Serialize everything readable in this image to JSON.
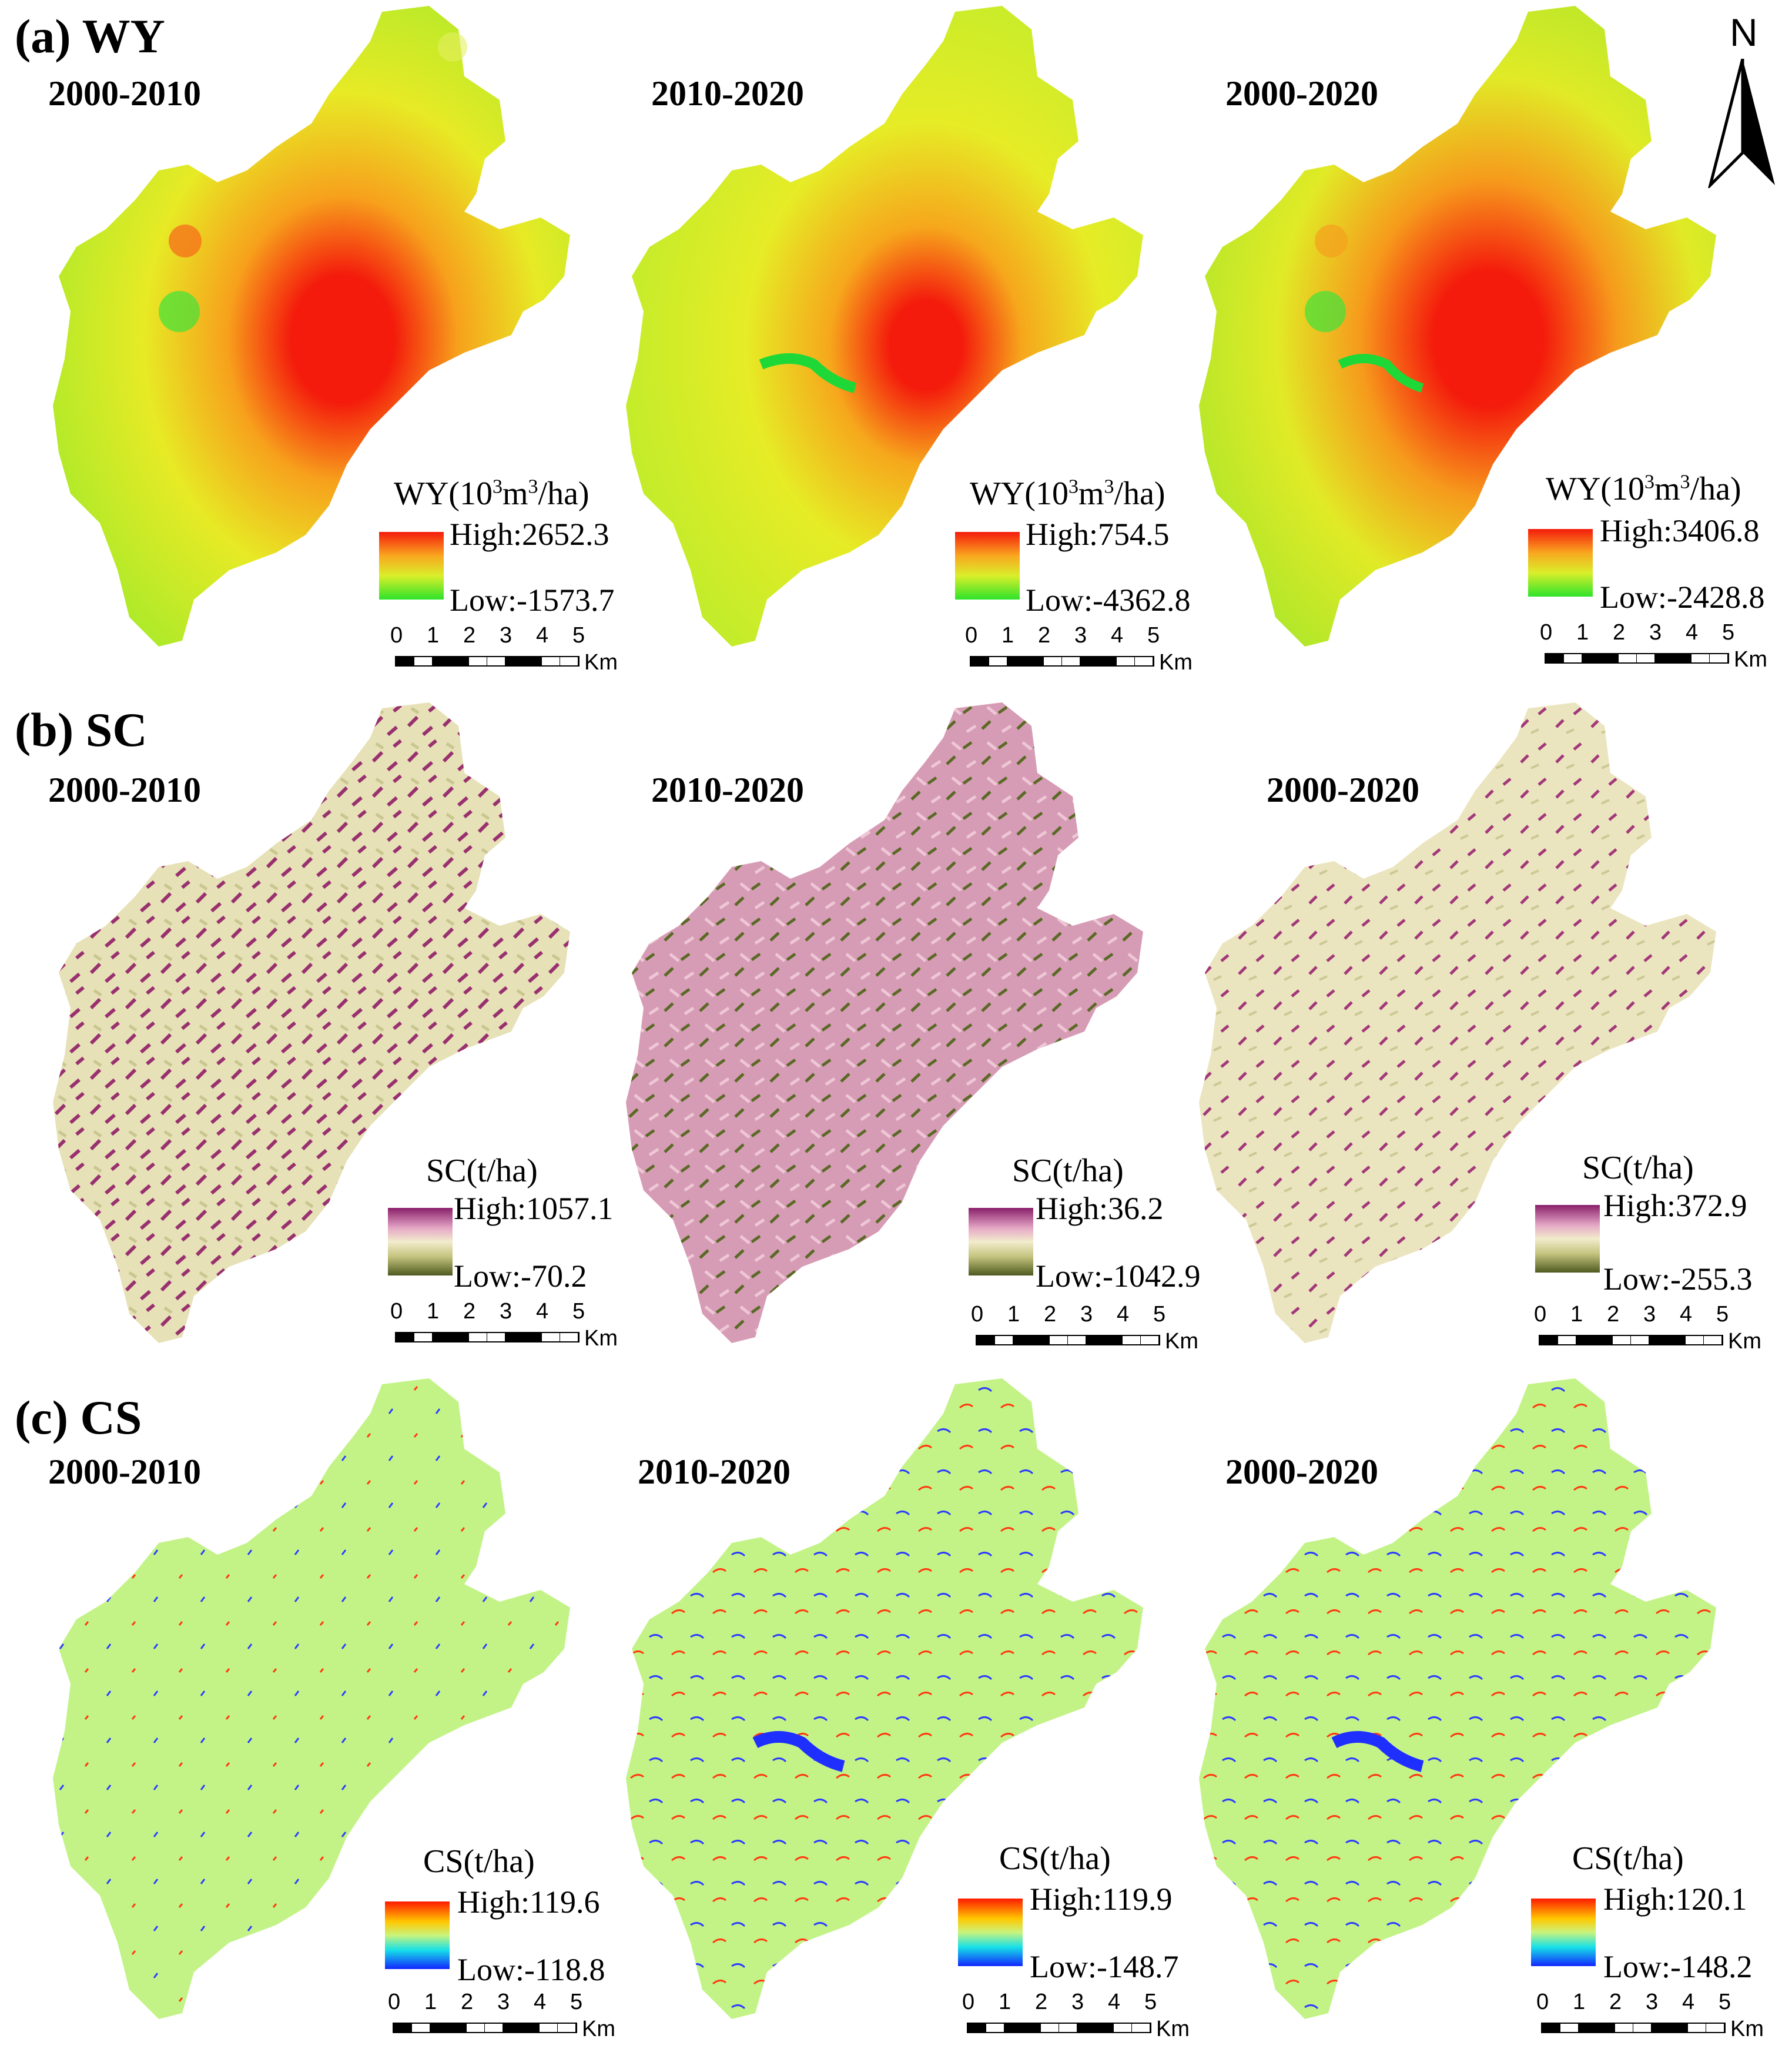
{
  "sections": [
    {
      "label": "(a) WY",
      "legend_title_prefix": "WY(10",
      "legend_sup1": "3",
      "legend_mid": "m",
      "legend_sup2": "3",
      "legend_suffix": "/ha)",
      "ramp": [
        "#f41b0c",
        "#f9c21f",
        "#d9ef2a",
        "#2ee32b"
      ],
      "maps": [
        {
          "period": "2000-2010",
          "high": "High:2652.3",
          "low": "Low:-1573.7"
        },
        {
          "period": "2010-2020",
          "high": "High:754.5",
          "low": "Low:-4362.8"
        },
        {
          "period": "2000-2020",
          "high": "High:3406.8",
          "low": "Low:-2428.8"
        }
      ]
    },
    {
      "label": "(b) SC",
      "legend_title": "SC(t/ha)",
      "ramp": [
        "#8a1f6b",
        "#e5a8c6",
        "#f2eccc",
        "#c5c47f",
        "#4e5a1e"
      ],
      "maps": [
        {
          "period": "2000-2010",
          "high": "High:1057.1",
          "low": "Low:-70.2"
        },
        {
          "period": "2010-2020",
          "high": "High:36.2",
          "low": "Low:-1042.9"
        },
        {
          "period": "2000-2020",
          "high": "High:372.9",
          "low": "Low:-255.3"
        }
      ]
    },
    {
      "label": "(c) CS",
      "legend_title": "CS(t/ha)",
      "ramp": [
        "#ff1a00",
        "#ffc800",
        "#c9f47c",
        "#16e0e8",
        "#1226ff"
      ],
      "maps": [
        {
          "period": "2000-2010",
          "high": "High:119.6",
          "low": "Low:-118.8"
        },
        {
          "period": "2010-2020",
          "high": "High:119.9",
          "low": "Low:-148.7"
        },
        {
          "period": "2000-2020",
          "high": "High:120.1",
          "low": "Low:-148.2"
        }
      ]
    }
  ],
  "scalebar": {
    "ticks": [
      "0",
      "1",
      "2",
      "3",
      "4",
      "5"
    ],
    "unit": "Km"
  },
  "north_label": "N"
}
